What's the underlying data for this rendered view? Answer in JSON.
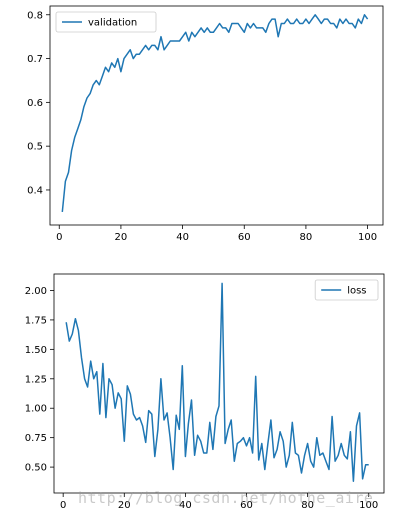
{
  "chart_data": [
    {
      "type": "line",
      "title": "",
      "xlabel": "",
      "ylabel": "",
      "xlim": [
        -3,
        105
      ],
      "ylim": [
        0.32,
        0.82
      ],
      "xticks": [
        0,
        20,
        40,
        60,
        80,
        100
      ],
      "yticks": [
        0.4,
        0.5,
        0.6,
        0.7,
        0.8
      ],
      "ytick_labels": [
        "0.4",
        "0.5",
        "0.6",
        "0.7",
        "0.8"
      ],
      "grid": false,
      "legend_position": "upper-left",
      "series": [
        {
          "name": "validation",
          "color": "#1f77b4",
          "x": [
            1,
            2,
            3,
            4,
            5,
            6,
            7,
            8,
            9,
            10,
            11,
            12,
            13,
            14,
            15,
            16,
            17,
            18,
            19,
            20,
            21,
            22,
            23,
            24,
            25,
            26,
            27,
            28,
            29,
            30,
            31,
            32,
            33,
            34,
            35,
            36,
            37,
            38,
            39,
            40,
            41,
            42,
            43,
            44,
            45,
            46,
            47,
            48,
            49,
            50,
            51,
            52,
            53,
            54,
            55,
            56,
            57,
            58,
            59,
            60,
            61,
            62,
            63,
            64,
            65,
            66,
            67,
            68,
            69,
            70,
            71,
            72,
            73,
            74,
            75,
            76,
            77,
            78,
            79,
            80,
            81,
            82,
            83,
            84,
            85,
            86,
            87,
            88,
            89,
            90,
            91,
            92,
            93,
            94,
            95,
            96,
            97,
            98,
            99,
            100
          ],
          "values": [
            0.35,
            0.42,
            0.44,
            0.49,
            0.52,
            0.54,
            0.56,
            0.59,
            0.61,
            0.62,
            0.64,
            0.65,
            0.64,
            0.66,
            0.68,
            0.67,
            0.69,
            0.68,
            0.7,
            0.67,
            0.7,
            0.71,
            0.72,
            0.7,
            0.71,
            0.71,
            0.72,
            0.73,
            0.72,
            0.73,
            0.73,
            0.72,
            0.75,
            0.72,
            0.73,
            0.74,
            0.74,
            0.74,
            0.74,
            0.75,
            0.76,
            0.74,
            0.76,
            0.75,
            0.76,
            0.77,
            0.76,
            0.77,
            0.76,
            0.76,
            0.77,
            0.78,
            0.77,
            0.77,
            0.76,
            0.78,
            0.78,
            0.78,
            0.77,
            0.76,
            0.78,
            0.77,
            0.78,
            0.77,
            0.77,
            0.77,
            0.76,
            0.78,
            0.79,
            0.79,
            0.75,
            0.78,
            0.78,
            0.79,
            0.78,
            0.78,
            0.79,
            0.78,
            0.78,
            0.79,
            0.78,
            0.79,
            0.8,
            0.79,
            0.78,
            0.79,
            0.79,
            0.78,
            0.78,
            0.77,
            0.79,
            0.78,
            0.79,
            0.78,
            0.78,
            0.77,
            0.79,
            0.78,
            0.8,
            0.79
          ]
        }
      ]
    },
    {
      "type": "line",
      "title": "",
      "xlabel": "",
      "ylabel": "",
      "xlim": [
        -3,
        105
      ],
      "ylim": [
        0.28,
        2.14
      ],
      "xticks": [
        0,
        20,
        40,
        60,
        80,
        100
      ],
      "yticks": [
        0.5,
        0.75,
        1.0,
        1.25,
        1.5,
        1.75,
        2.0
      ],
      "ytick_labels": [
        "0.50",
        "0.75",
        "1.00",
        "1.25",
        "1.50",
        "1.75",
        "2.00"
      ],
      "grid": false,
      "legend_position": "upper-right",
      "series": [
        {
          "name": "loss",
          "color": "#1f77b4",
          "x": [
            1,
            2,
            3,
            4,
            5,
            6,
            7,
            8,
            9,
            10,
            11,
            12,
            13,
            14,
            15,
            16,
            17,
            18,
            19,
            20,
            21,
            22,
            23,
            24,
            25,
            26,
            27,
            28,
            29,
            30,
            31,
            32,
            33,
            34,
            35,
            36,
            37,
            38,
            39,
            40,
            41,
            42,
            43,
            44,
            45,
            46,
            47,
            48,
            49,
            50,
            51,
            52,
            53,
            54,
            55,
            56,
            57,
            58,
            59,
            60,
            61,
            62,
            63,
            64,
            65,
            66,
            67,
            68,
            69,
            70,
            71,
            72,
            73,
            74,
            75,
            76,
            77,
            78,
            79,
            80,
            81,
            82,
            83,
            84,
            85,
            86,
            87,
            88,
            89,
            90,
            91,
            92,
            93,
            94,
            95,
            96,
            97,
            98,
            99,
            100
          ],
          "values": [
            1.73,
            1.57,
            1.63,
            1.76,
            1.66,
            1.43,
            1.25,
            1.18,
            1.4,
            1.25,
            1.31,
            0.95,
            1.38,
            0.92,
            1.25,
            1.2,
            1.0,
            1.13,
            1.08,
            0.72,
            1.19,
            1.12,
            0.95,
            0.9,
            0.92,
            0.85,
            0.71,
            0.98,
            0.95,
            0.59,
            0.82,
            1.25,
            0.9,
            0.96,
            0.75,
            0.48,
            0.94,
            0.82,
            1.36,
            0.59,
            0.87,
            1.07,
            0.6,
            0.77,
            0.72,
            0.62,
            0.62,
            0.88,
            0.65,
            0.93,
            1.02,
            2.06,
            0.7,
            0.82,
            0.9,
            0.55,
            0.7,
            0.72,
            0.75,
            0.68,
            0.75,
            0.62,
            1.27,
            0.56,
            0.7,
            0.48,
            0.7,
            0.9,
            0.58,
            0.65,
            0.8,
            0.72,
            0.5,
            0.6,
            0.88,
            0.62,
            0.6,
            0.45,
            0.6,
            0.7,
            0.55,
            0.5,
            0.75,
            0.6,
            0.62,
            0.55,
            0.48,
            0.93,
            0.55,
            0.6,
            0.7,
            0.6,
            0.57,
            0.8,
            0.38,
            0.85,
            0.96,
            0.4,
            0.52,
            0.52
          ]
        }
      ]
    }
  ],
  "watermark": "http://blog.csdn.net/hothe_aire"
}
